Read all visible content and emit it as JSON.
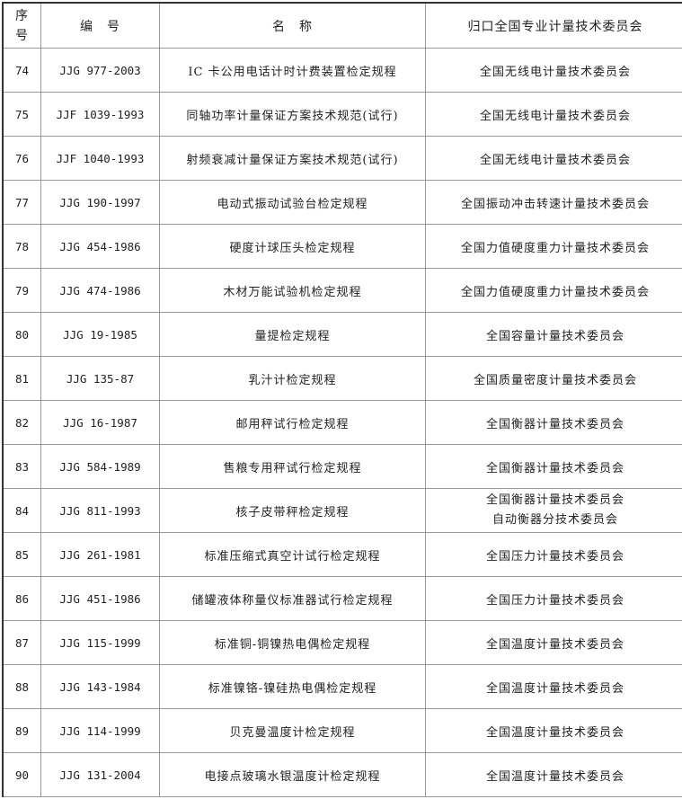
{
  "header": {
    "seq": "序\n号",
    "code": "编　号",
    "name": "名　称",
    "committee": "归口全国专业计量技术委员会"
  },
  "rows": [
    {
      "seq": "74",
      "code": "JJG 977-2003",
      "name": "IC 卡公用电话计时计费装置检定规程",
      "committee": "全国无线电计量技术委员会"
    },
    {
      "seq": "75",
      "code": "JJF 1039-1993",
      "name": "同轴功率计量保证方案技术规范(试行)",
      "committee": "全国无线电计量技术委员会"
    },
    {
      "seq": "76",
      "code": "JJF 1040-1993",
      "name": "射频衰减计量保证方案技术规范(试行)",
      "committee": "全国无线电计量技术委员会"
    },
    {
      "seq": "77",
      "code": "JJG 190-1997",
      "name": "电动式振动试验台检定规程",
      "committee": "全国振动冲击转速计量技术委员会"
    },
    {
      "seq": "78",
      "code": "JJG 454-1986",
      "name": "硬度计球压头检定规程",
      "committee": "全国力值硬度重力计量技术委员会"
    },
    {
      "seq": "79",
      "code": "JJG 474-1986",
      "name": "木材万能试验机检定规程",
      "committee": "全国力值硬度重力计量技术委员会"
    },
    {
      "seq": "80",
      "code": "JJG 19-1985",
      "name": "量提检定规程",
      "committee": "全国容量计量技术委员会"
    },
    {
      "seq": "81",
      "code": "JJG 135-87",
      "name": "乳汁计检定规程",
      "committee": "全国质量密度计量技术委员会"
    },
    {
      "seq": "82",
      "code": "JJG 16-1987",
      "name": "邮用秤试行检定规程",
      "committee": "全国衡器计量技术委员会"
    },
    {
      "seq": "83",
      "code": "JJG 584-1989",
      "name": "售粮专用秤试行检定规程",
      "committee": "全国衡器计量技术委员会"
    },
    {
      "seq": "84",
      "code": "JJG 811-1993",
      "name": "核子皮带秤检定规程",
      "committee": "全国衡器计量技术委员会",
      "committee2": "自动衡器分技术委员会"
    },
    {
      "seq": "85",
      "code": "JJG 261-1981",
      "name": "标准压缩式真空计试行检定规程",
      "committee": "全国压力计量技术委员会"
    },
    {
      "seq": "86",
      "code": "JJG 451-1986",
      "name": "储罐液体称量仪标准器试行检定规程",
      "committee": "全国压力计量技术委员会"
    },
    {
      "seq": "87",
      "code": "JJG 115-1999",
      "name": "标准铜-铜镍热电偶检定规程",
      "committee": "全国温度计量技术委员会"
    },
    {
      "seq": "88",
      "code": "JJG 143-1984",
      "name": "标准镍铬-镍硅热电偶检定规程",
      "committee": "全国温度计量技术委员会"
    },
    {
      "seq": "89",
      "code": "JJG 114-1999",
      "name": "贝克曼温度计检定规程",
      "committee": "全国温度计量技术委员会"
    },
    {
      "seq": "90",
      "code": "JJG 131-2004",
      "name": "电接点玻璃水银温度计检定规程",
      "committee": "全国温度计量技术委员会"
    }
  ]
}
